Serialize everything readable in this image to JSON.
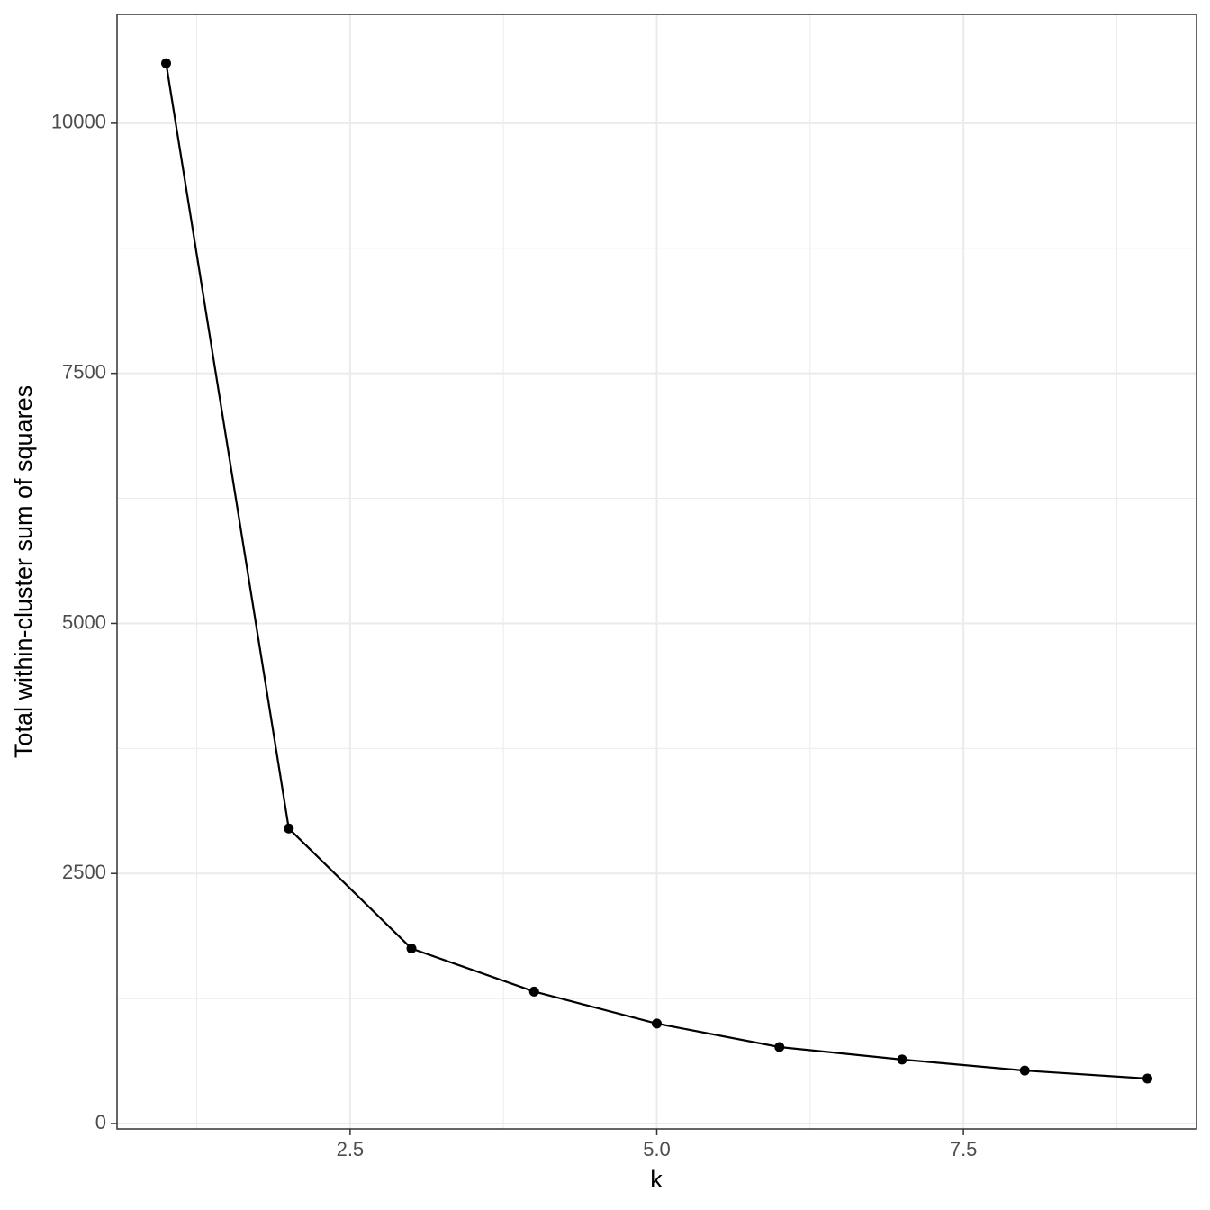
{
  "chart_data": {
    "type": "line",
    "x_label": "k",
    "y_label": "Total within-cluster sum of squares",
    "x": [
      1,
      2,
      3,
      4,
      5,
      6,
      7,
      8,
      9
    ],
    "series": [
      {
        "color": "#000000",
        "values": [
          10600,
          2950,
          1750,
          1320,
          1000,
          765,
          640,
          530,
          450
        ]
      }
    ],
    "xlim": [
      0.6,
      9.4
    ],
    "ylim": [
      -54,
      11088
    ],
    "xticks": [
      2.5,
      {
        "value": 5,
        "label": "5.0"
      },
      7.5
    ],
    "yticks": [
      0,
      2500,
      5000,
      7500,
      10000
    ],
    "grid": true,
    "minor_grid": true
  }
}
